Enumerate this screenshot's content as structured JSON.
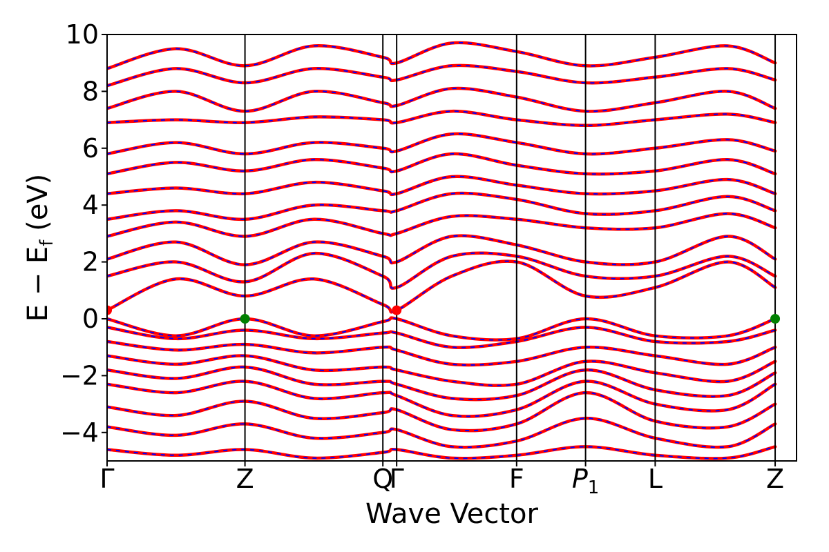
{
  "chart_data": {
    "type": "line",
    "xlabel": "Wave Vector",
    "ylabel_parts": {
      "main": "E − E",
      "sub": "f",
      "unit": " (eV)"
    },
    "ylim": [
      -5,
      10
    ],
    "yticks": [
      {
        "value": 10,
        "label": "10"
      },
      {
        "value": 8,
        "label": "8"
      },
      {
        "value": 6,
        "label": "6"
      },
      {
        "value": 4,
        "label": "4"
      },
      {
        "value": 2,
        "label": "2"
      },
      {
        "value": 0,
        "label": "0"
      },
      {
        "value": -2,
        "label": "−2"
      },
      {
        "value": -4,
        "label": "−4"
      }
    ],
    "xlim": [
      0,
      1
    ],
    "kpath": [
      {
        "label": "Γ",
        "pos": 0.0
      },
      {
        "label": "Z",
        "pos": 0.2
      },
      {
        "label": "Q",
        "pos": 0.4
      },
      {
        "label": "Γ",
        "pos": 0.42
      },
      {
        "label": "F",
        "pos": 0.594
      },
      {
        "label": "P",
        "sub": "1",
        "pos": 0.694
      },
      {
        "label": "L",
        "pos": 0.795
      },
      {
        "label": "Z",
        "pos": 0.969
      }
    ],
    "grid": false,
    "legend": "none",
    "line_colors": {
      "primary": "#ff0000",
      "dashed_overlay": "#0000ff"
    },
    "series": [
      {
        "x": [
          0,
          0.1,
          0.2,
          0.3,
          0.4,
          0.42,
          0.5,
          0.594,
          0.694,
          0.795,
          0.9,
          0.969
        ],
        "y": [
          0.0,
          -0.6,
          0.0,
          -0.6,
          -0.1,
          0.0,
          -0.6,
          -0.7,
          0.0,
          -0.6,
          -0.6,
          0.0
        ]
      },
      {
        "x": [
          0,
          0.1,
          0.2,
          0.3,
          0.4,
          0.42,
          0.5,
          0.594,
          0.694,
          0.795,
          0.9,
          0.969
        ],
        "y": [
          -0.3,
          -0.7,
          -0.4,
          -0.7,
          -0.5,
          -0.5,
          -1.0,
          -0.8,
          -0.3,
          -0.8,
          -0.8,
          -0.4
        ]
      },
      {
        "x": [
          0,
          0.1,
          0.2,
          0.3,
          0.4,
          0.42,
          0.5,
          0.594,
          0.694,
          0.795,
          0.9,
          0.969
        ],
        "y": [
          -0.8,
          -1.1,
          -0.9,
          -1.2,
          -1.0,
          -1.1,
          -1.6,
          -1.5,
          -1.0,
          -1.3,
          -1.6,
          -1.0
        ]
      },
      {
        "x": [
          0,
          0.1,
          0.2,
          0.3,
          0.4,
          0.42,
          0.5,
          0.594,
          0.694,
          0.795,
          0.9,
          0.969
        ],
        "y": [
          -1.3,
          -1.6,
          -1.3,
          -1.8,
          -1.7,
          -1.8,
          -2.2,
          -2.3,
          -1.5,
          -1.9,
          -2.2,
          -1.5
        ]
      },
      {
        "x": [
          0,
          0.1,
          0.2,
          0.3,
          0.4,
          0.42,
          0.5,
          0.594,
          0.694,
          0.795,
          0.9,
          0.969
        ],
        "y": [
          -1.8,
          -2.1,
          -1.7,
          -2.3,
          -2.2,
          -2.3,
          -2.8,
          -2.7,
          -1.8,
          -2.5,
          -2.7,
          -1.9
        ]
      },
      {
        "x": [
          0,
          0.1,
          0.2,
          0.3,
          0.4,
          0.42,
          0.5,
          0.594,
          0.694,
          0.795,
          0.9,
          0.969
        ],
        "y": [
          -2.3,
          -2.6,
          -2.2,
          -2.8,
          -2.6,
          -2.7,
          -3.4,
          -3.2,
          -2.2,
          -3.0,
          -3.2,
          -2.3
        ]
      },
      {
        "x": [
          0,
          0.1,
          0.2,
          0.3,
          0.4,
          0.42,
          0.5,
          0.594,
          0.694,
          0.795,
          0.9,
          0.969
        ],
        "y": [
          -3.1,
          -3.4,
          -2.9,
          -3.5,
          -3.3,
          -3.2,
          -3.9,
          -3.7,
          -2.6,
          -3.6,
          -3.8,
          -3.0
        ]
      },
      {
        "x": [
          0,
          0.1,
          0.2,
          0.3,
          0.4,
          0.42,
          0.5,
          0.594,
          0.694,
          0.795,
          0.9,
          0.969
        ],
        "y": [
          -3.8,
          -4.1,
          -3.7,
          -4.2,
          -4.0,
          -3.9,
          -4.5,
          -4.3,
          -3.5,
          -4.2,
          -4.5,
          -3.7
        ]
      },
      {
        "x": [
          0,
          0.1,
          0.2,
          0.3,
          0.4,
          0.42,
          0.5,
          0.594,
          0.694,
          0.795,
          0.9,
          0.969
        ],
        "y": [
          -4.6,
          -4.8,
          -4.6,
          -4.9,
          -4.7,
          -4.6,
          -4.9,
          -4.8,
          -4.5,
          -4.8,
          -4.9,
          -4.5
        ]
      },
      {
        "x": [
          0,
          0.1,
          0.2,
          0.3,
          0.4,
          0.42,
          0.5,
          0.594,
          0.694,
          0.795,
          0.9,
          0.969
        ],
        "y": [
          0.3,
          1.4,
          0.8,
          1.4,
          0.5,
          0.3,
          1.5,
          2.0,
          0.8,
          1.1,
          2.0,
          1.1
        ]
      },
      {
        "x": [
          0,
          0.1,
          0.2,
          0.3,
          0.4,
          0.42,
          0.5,
          0.594,
          0.694,
          0.795,
          0.9,
          0.969
        ],
        "y": [
          1.5,
          2.0,
          1.3,
          2.3,
          1.5,
          1.1,
          2.2,
          2.2,
          1.5,
          1.5,
          2.2,
          1.5
        ]
      },
      {
        "x": [
          0,
          0.1,
          0.2,
          0.3,
          0.4,
          0.42,
          0.5,
          0.594,
          0.694,
          0.795,
          0.9,
          0.969
        ],
        "y": [
          2.1,
          2.7,
          1.9,
          2.7,
          2.2,
          2.0,
          2.9,
          2.6,
          2.0,
          2.0,
          2.9,
          2.1
        ]
      },
      {
        "x": [
          0,
          0.1,
          0.2,
          0.3,
          0.4,
          0.42,
          0.5,
          0.594,
          0.694,
          0.795,
          0.9,
          0.969
        ],
        "y": [
          2.9,
          3.4,
          2.9,
          3.5,
          3.0,
          3.0,
          3.6,
          3.5,
          3.2,
          3.2,
          3.7,
          3.2
        ]
      },
      {
        "x": [
          0,
          0.1,
          0.2,
          0.3,
          0.4,
          0.42,
          0.5,
          0.594,
          0.694,
          0.795,
          0.9,
          0.969
        ],
        "y": [
          3.5,
          3.8,
          3.5,
          4.0,
          3.8,
          3.8,
          4.4,
          4.2,
          3.7,
          3.8,
          4.3,
          3.8
        ]
      },
      {
        "x": [
          0,
          0.1,
          0.2,
          0.3,
          0.4,
          0.42,
          0.5,
          0.594,
          0.694,
          0.795,
          0.9,
          0.969
        ],
        "y": [
          4.4,
          4.6,
          4.4,
          4.8,
          4.5,
          4.4,
          5.0,
          4.7,
          4.4,
          4.5,
          4.9,
          4.4
        ]
      },
      {
        "x": [
          0,
          0.1,
          0.2,
          0.3,
          0.4,
          0.42,
          0.5,
          0.594,
          0.694,
          0.795,
          0.9,
          0.969
        ],
        "y": [
          5.1,
          5.5,
          5.2,
          5.6,
          5.3,
          5.2,
          5.8,
          5.4,
          5.1,
          5.2,
          5.6,
          5.1
        ]
      },
      {
        "x": [
          0,
          0.1,
          0.2,
          0.3,
          0.4,
          0.42,
          0.5,
          0.594,
          0.694,
          0.795,
          0.9,
          0.969
        ],
        "y": [
          5.8,
          6.2,
          5.8,
          6.2,
          6.0,
          5.9,
          6.5,
          6.2,
          5.8,
          6.0,
          6.3,
          5.9
        ]
      },
      {
        "x": [
          0,
          0.1,
          0.2,
          0.3,
          0.4,
          0.42,
          0.5,
          0.594,
          0.694,
          0.795,
          0.9,
          0.969
        ],
        "y": [
          6.9,
          7.0,
          6.9,
          7.1,
          7.0,
          6.9,
          7.3,
          7.0,
          6.8,
          7.0,
          7.2,
          6.9
        ]
      },
      {
        "x": [
          0,
          0.1,
          0.2,
          0.3,
          0.4,
          0.42,
          0.5,
          0.594,
          0.694,
          0.795,
          0.9,
          0.969
        ],
        "y": [
          7.4,
          8.0,
          7.3,
          8.0,
          7.6,
          7.5,
          8.1,
          7.8,
          7.3,
          7.6,
          8.0,
          7.4
        ]
      },
      {
        "x": [
          0,
          0.1,
          0.2,
          0.3,
          0.4,
          0.42,
          0.5,
          0.594,
          0.694,
          0.795,
          0.9,
          0.969
        ],
        "y": [
          8.2,
          8.8,
          8.3,
          8.8,
          8.5,
          8.4,
          8.9,
          8.7,
          8.3,
          8.5,
          8.8,
          8.4
        ]
      },
      {
        "x": [
          0,
          0.1,
          0.2,
          0.3,
          0.4,
          0.42,
          0.5,
          0.594,
          0.694,
          0.795,
          0.9,
          0.969
        ],
        "y": [
          8.8,
          9.5,
          8.9,
          9.6,
          9.2,
          9.0,
          9.7,
          9.4,
          8.9,
          9.2,
          9.6,
          9.0
        ]
      }
    ],
    "markers": [
      {
        "x": 0.0,
        "y": 0.3,
        "color": "#ff0000"
      },
      {
        "x": 0.2,
        "y": 0.0,
        "color": "#008000"
      },
      {
        "x": 0.42,
        "y": 0.3,
        "color": "#ff0000"
      },
      {
        "x": 0.969,
        "y": 0.0,
        "color": "#008000"
      }
    ]
  }
}
